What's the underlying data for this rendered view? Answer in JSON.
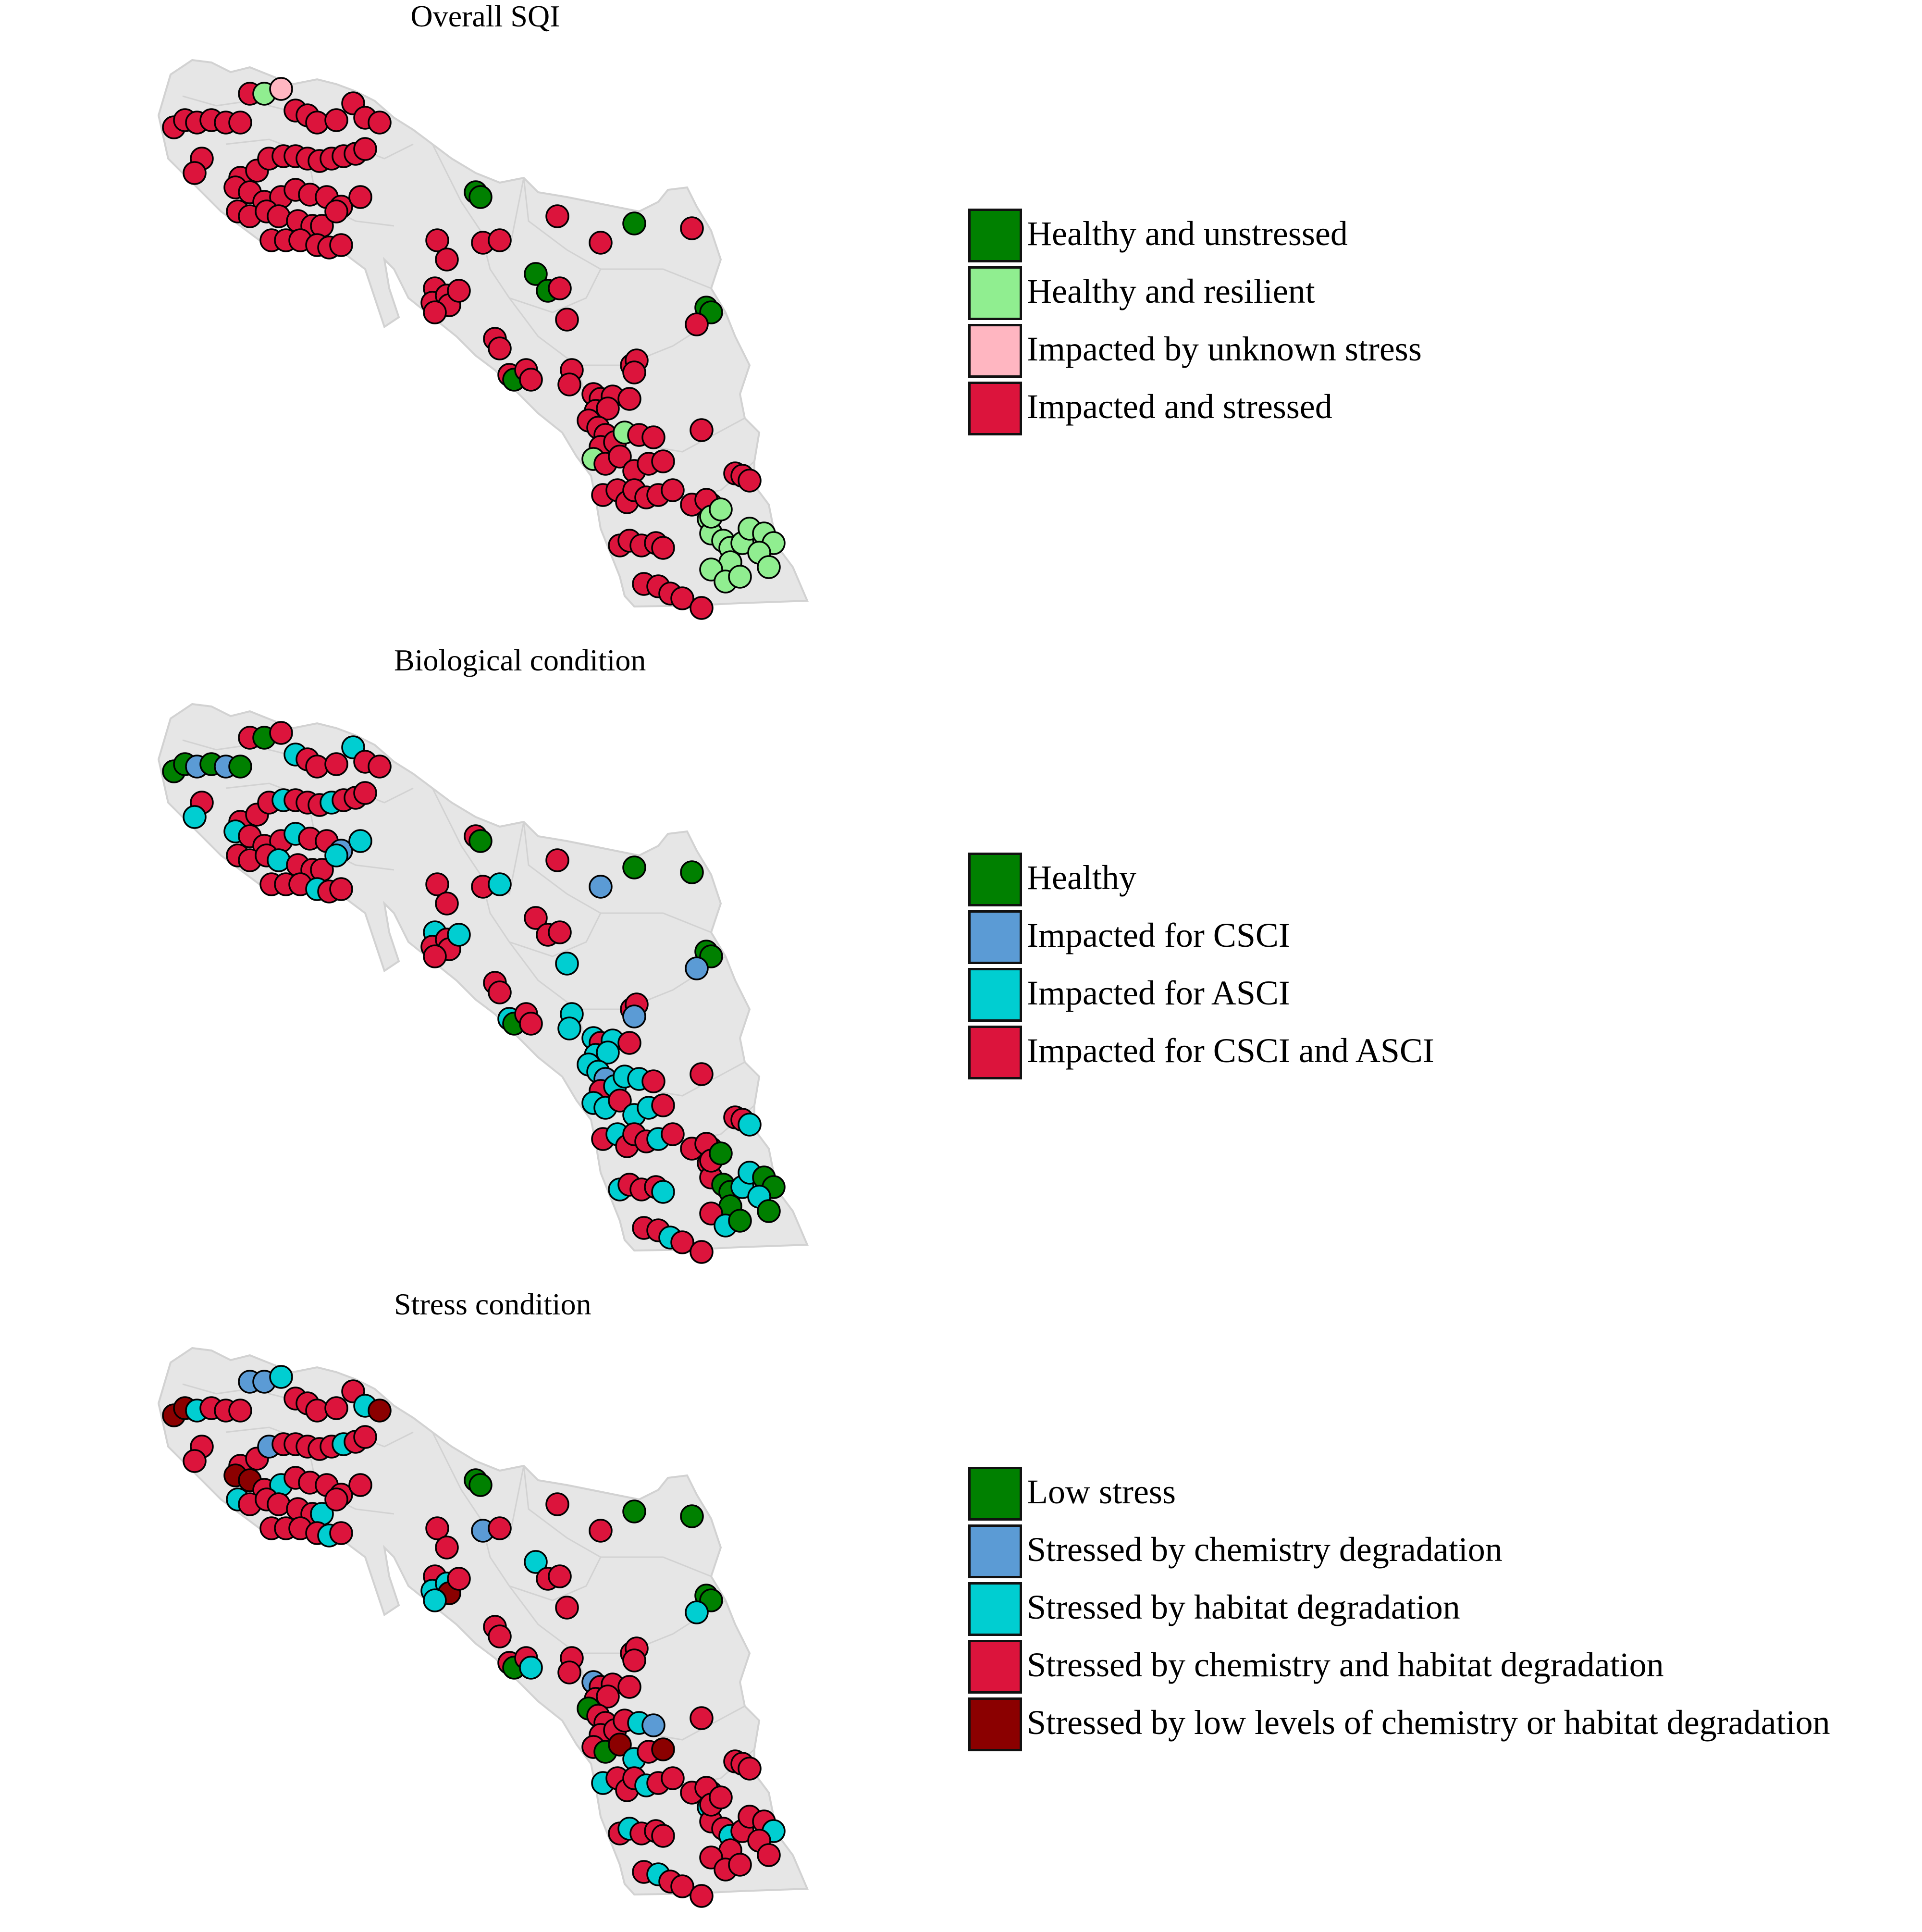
{
  "panels": [
    {
      "title": "Overall SQI",
      "legend": [
        {
          "label": "Healthy and unstressed",
          "color": "#008000"
        },
        {
          "label": "Healthy and resilient",
          "color": "#90EE90"
        },
        {
          "label": "Impacted by unknown stress",
          "color": "#FFB6C1"
        },
        {
          "label": "Impacted and stressed",
          "color": "#DC143C"
        }
      ]
    },
    {
      "title": "Biological condition",
      "legend": [
        {
          "label": "Healthy",
          "color": "#008000"
        },
        {
          "label": "Impacted for CSCI",
          "color": "#5B9BD5"
        },
        {
          "label": "Impacted for ASCI",
          "color": "#00CED1"
        },
        {
          "label": "Impacted for CSCI and ASCI",
          "color": "#DC143C"
        }
      ]
    },
    {
      "title": "Stress condition",
      "legend": [
        {
          "label": "Low stress",
          "color": "#008000"
        },
        {
          "label": "Stressed by chemistry degradation",
          "color": "#5B9BD5"
        },
        {
          "label": "Stressed by habitat degradation",
          "color": "#00CED1"
        },
        {
          "label": "Stressed by chemistry and habitat degradation",
          "color": "#DC143C"
        },
        {
          "label": "Stressed by low levels of chemistry or habitat degradation",
          "color": "#8B0000"
        }
      ]
    }
  ],
  "map": {
    "region_fill": "#E6E6E6",
    "region_stroke": "#D2D2D2",
    "point_stroke": "#000000"
  }
}
